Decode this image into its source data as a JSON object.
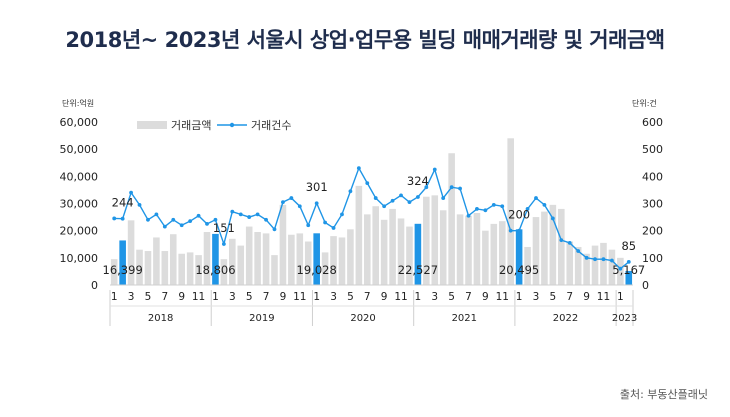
{
  "title": "2018년~ 2023년 서울시 상업·업무용 빌딩 매매거래량 및 거래금액",
  "source": "출처: 부동산플래닛",
  "colors": {
    "bar": "#dcdcdc",
    "bar_highlight": "#1f95e6",
    "line": "#1f95e6",
    "title": "#1f2d4d"
  },
  "chart_data": {
    "type": "bar+line",
    "left_axis": {
      "unit": "단위:억원",
      "ylim": [
        0,
        60000
      ],
      "ticks": [
        "60,000",
        "50,000",
        "40,000",
        "30,000",
        "20,000",
        "10,000",
        "0"
      ]
    },
    "right_axis": {
      "unit": "단위:건",
      "ylim": [
        0,
        600
      ],
      "ticks": [
        "600",
        "500",
        "400",
        "300",
        "200",
        "100",
        "0"
      ]
    },
    "legend": [
      "거래금액",
      "거래건수"
    ],
    "legend_position": "top-left",
    "x_month_labels": [
      "1",
      "3",
      "5",
      "7",
      "9",
      "11"
    ],
    "x_month_labels_2023": [
      "1"
    ],
    "years": [
      "2018",
      "2019",
      "2020",
      "2021",
      "2022",
      "2023"
    ],
    "series": [
      {
        "name": "거래금액",
        "type": "bar",
        "axis": "left",
        "values": [
          9500,
          16399,
          23800,
          13000,
          12500,
          17500,
          12500,
          18700,
          11500,
          12000,
          11000,
          19500,
          18806,
          9500,
          17000,
          14500,
          21500,
          19500,
          19000,
          11000,
          29500,
          18500,
          19000,
          16000,
          19028,
          12000,
          18000,
          17500,
          20500,
          36500,
          26000,
          29000,
          24000,
          28000,
          24500,
          21500,
          22527,
          32500,
          33000,
          27500,
          48500,
          26000,
          25500,
          26500,
          20000,
          22500,
          23500,
          54000,
          20495,
          14000,
          25000,
          27000,
          29500,
          28000,
          16000,
          14000,
          11500,
          14500,
          15500,
          13000,
          10000,
          5167
        ],
        "highlight_index": [
          1,
          12,
          24,
          36,
          48,
          61
        ],
        "highlight_labels": [
          "16,399",
          "18,806",
          "19,028",
          "22,527",
          "20,495",
          "5,167"
        ]
      },
      {
        "name": "거래건수",
        "type": "line",
        "axis": "right",
        "values": [
          245,
          244,
          340,
          295,
          240,
          260,
          215,
          240,
          220,
          235,
          255,
          225,
          240,
          151,
          270,
          260,
          250,
          260,
          240,
          205,
          305,
          320,
          290,
          220,
          301,
          230,
          210,
          260,
          345,
          430,
          375,
          320,
          290,
          310,
          330,
          305,
          324,
          360,
          425,
          320,
          360,
          355,
          255,
          280,
          275,
          295,
          290,
          200,
          200,
          280,
          320,
          295,
          245,
          165,
          155,
          125,
          100,
          95,
          95,
          90,
          60,
          85
        ],
        "labels": [
          {
            "index": 1,
            "text": "244"
          },
          {
            "index": 13,
            "text": "151"
          },
          {
            "index": 24,
            "text": "301"
          },
          {
            "index": 36,
            "text": "324"
          },
          {
            "index": 48,
            "text": "200"
          },
          {
            "index": 61,
            "text": "85"
          }
        ]
      }
    ]
  }
}
